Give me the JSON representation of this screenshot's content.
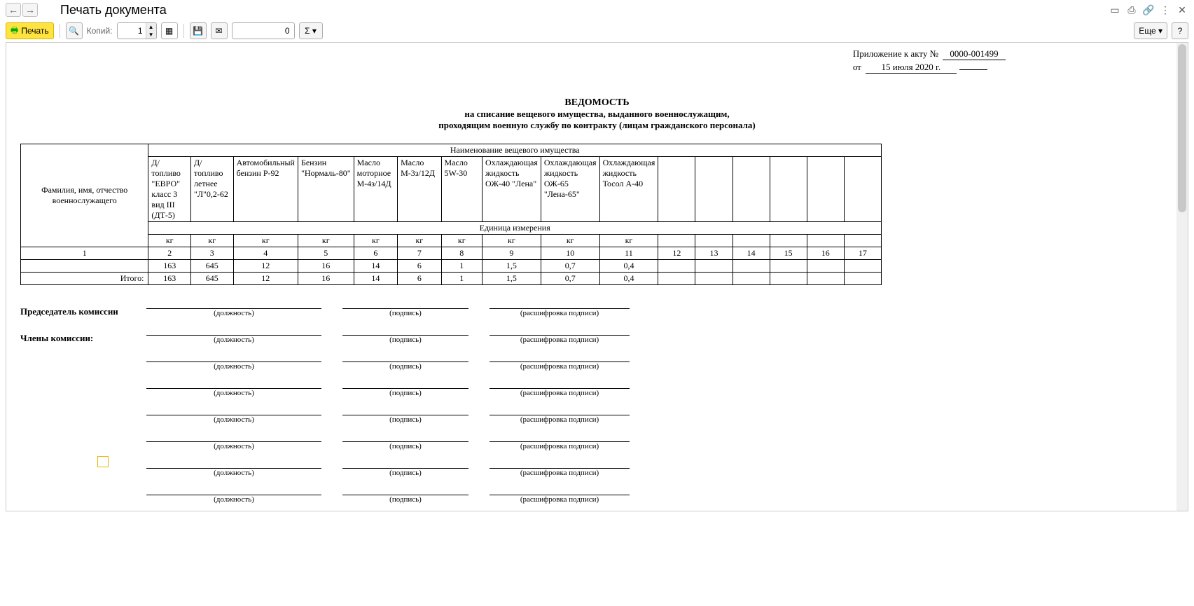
{
  "titlebar": {
    "title": "Печать документа"
  },
  "toolbar": {
    "print_label": "Печать",
    "copies_label": "Копий:",
    "copies_value": "1",
    "num_value": "0",
    "sum_symbol": "Σ",
    "more_label": "Еще",
    "help_label": "?"
  },
  "act": {
    "prefix": "Приложение к акту  №",
    "number": "0000-001499",
    "from": "от",
    "date": "15 июля 2020 г."
  },
  "title": "ВЕДОМОСТЬ",
  "sub1": "на списание вещевого имущества, выданного военнослужащим,",
  "sub2": "проходящим военную службу по контракту (лицам гражданского персонала)",
  "table": {
    "fio_header": "Фамилия, имя, отчество военнослужащего",
    "group_header": "Наименование вещевого имущества",
    "unit_header": "Единица измерения",
    "itogo": "Итого:",
    "cols": [
      "Д/топливо \"ЕВРО\" класс 3 вид III (ДТ-5)",
      "Д/топливо летнее \"Л\"0,2-62",
      "Автомобильный бензин Р-92",
      "Бензин \"Нормаль-80\"",
      "Масло моторное М-4з/14Д",
      "Масло М-3з/12Д",
      "Масло 5W-30",
      "Охлаждающая жидкость ОЖ-40 \"Лена\"",
      "Охлаждающая жидкость ОЖ-65 \"Лена-65\"",
      "Охлаждающая жидкость Тосол А-40"
    ],
    "units": [
      "кг",
      "кг",
      "кг",
      "кг",
      "кг",
      "кг",
      "кг",
      "кг",
      "кг",
      "кг"
    ],
    "colnums": [
      "1",
      "2",
      "3",
      "4",
      "5",
      "6",
      "7",
      "8",
      "9",
      "10",
      "11",
      "12",
      "13",
      "14",
      "15",
      "16",
      "17"
    ],
    "row_vals": [
      "163",
      "645",
      "12",
      "16",
      "14",
      "6",
      "1",
      "1,5",
      "0,7",
      "0,4"
    ],
    "itogo_vals": [
      "163",
      "645",
      "12",
      "16",
      "14",
      "6",
      "1",
      "1,5",
      "0,7",
      "0,4"
    ]
  },
  "sig": {
    "chairman": "Председатель комиссии",
    "members": "Члены комиссии:",
    "pos": "(должность)",
    "sign": "(подпись)",
    "dec": "(расшифровка подписи)"
  }
}
